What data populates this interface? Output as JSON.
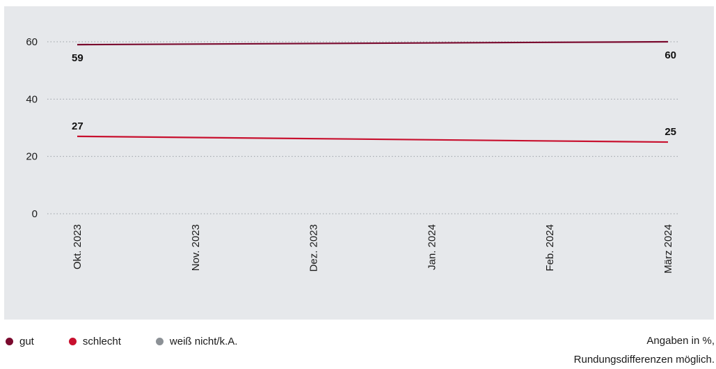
{
  "chart_data": {
    "type": "line",
    "categories": [
      "Okt. 2023",
      "Nov. 2023",
      "Dez. 2023",
      "Jan. 2024",
      "Feb. 2024",
      "März 2024"
    ],
    "ylim": [
      0,
      60
    ],
    "yticks": [
      0,
      20,
      40,
      60
    ],
    "grid": "horizontal-dotted",
    "series": [
      {
        "name": "gut",
        "color": "#7a0a2e",
        "x": [
          "Okt. 2023",
          "März 2024"
        ],
        "values": [
          59,
          60
        ],
        "labels": [
          "59",
          "60"
        ]
      },
      {
        "name": "schlecht",
        "color": "#c8102e",
        "x": [
          "Okt. 2023",
          "März 2024"
        ],
        "values": [
          27,
          25
        ],
        "labels": [
          "27",
          "25"
        ]
      },
      {
        "name": "weiß nicht/k.A.",
        "color": "#8c9196",
        "x": [],
        "values": [],
        "labels": []
      }
    ]
  },
  "legend": [
    {
      "label": "gut",
      "color": "#7a0a2e"
    },
    {
      "label": "schlecht",
      "color": "#c8102e"
    },
    {
      "label": "weiß nicht/k.A.",
      "color": "#8c9196"
    }
  ],
  "note": {
    "line1": "Angaben in %,",
    "line2": "Rundungsdifferenzen möglich."
  }
}
